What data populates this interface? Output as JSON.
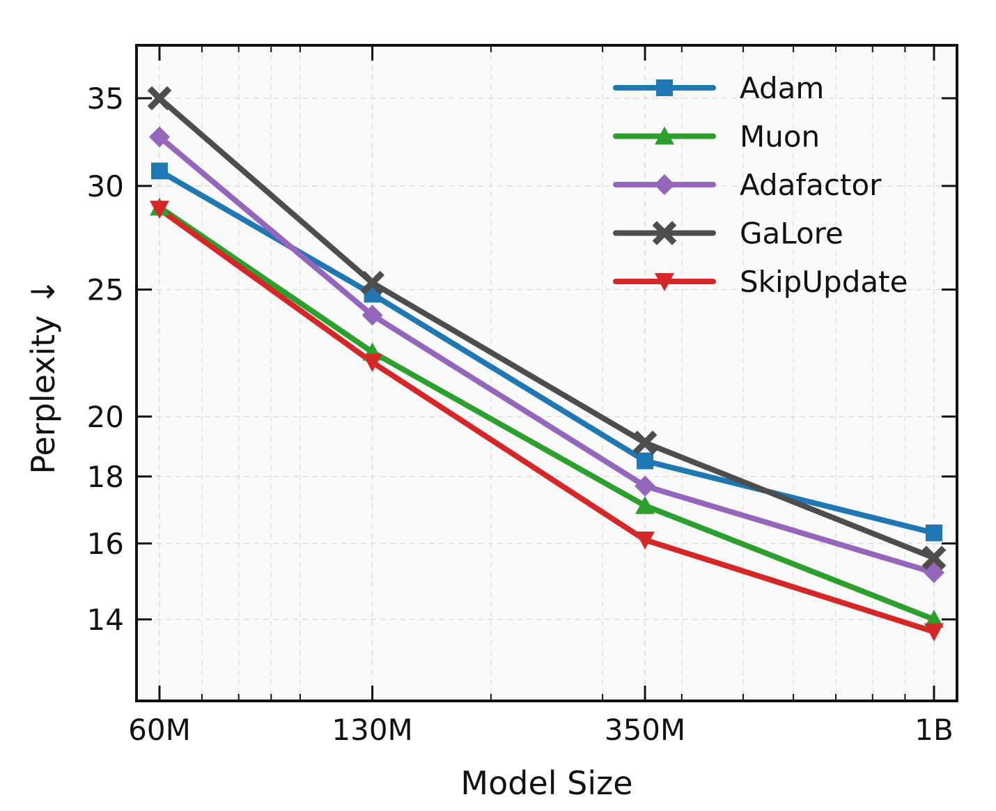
{
  "chart_data": {
    "type": "line",
    "title": "",
    "xlabel": "Model Size",
    "ylabel": "Perplexity ↓",
    "xscale": "log",
    "yscale": "log",
    "x": [
      60000000,
      130000000,
      350000000,
      1000000000
    ],
    "x_tick_labels": [
      "60M",
      "130M",
      "350M",
      "1B"
    ],
    "y_ticks": [
      14,
      16,
      18,
      20,
      25,
      30,
      35
    ],
    "y_tick_labels": [
      "14",
      "16",
      "18",
      "20",
      "25",
      "30",
      "35"
    ],
    "ylim": [
      12.3,
      39.5
    ],
    "xlim": [
      55000000,
      1100000000
    ],
    "grid": true,
    "legend_position": "top-right",
    "series": [
      {
        "name": "Adam",
        "color": "#1f77b4",
        "marker": "square",
        "values": [
          30.8,
          24.8,
          18.5,
          16.3
        ]
      },
      {
        "name": "Muon",
        "color": "#2ca02c",
        "marker": "triangle-up",
        "values": [
          28.9,
          22.4,
          17.1,
          14.0
        ]
      },
      {
        "name": "Adafactor",
        "color": "#9467bd",
        "marker": "diamond",
        "values": [
          32.7,
          23.9,
          17.7,
          15.2
        ]
      },
      {
        "name": "GaLore",
        "color": "#4d4d4d",
        "marker": "x",
        "values": [
          35.0,
          25.3,
          19.1,
          15.6
        ]
      },
      {
        "name": "SkipUpdate",
        "color": "#d62728",
        "marker": "triangle-down",
        "values": [
          28.8,
          22.0,
          16.1,
          13.7
        ]
      }
    ]
  }
}
